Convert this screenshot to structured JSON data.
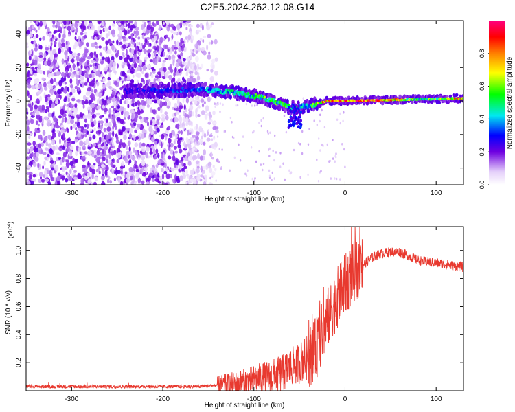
{
  "title": "C2E5.2024.262.12.08.G14",
  "chart_data": [
    {
      "type": "heatmap",
      "xlabel": "Height of straight line (km)",
      "ylabel": "Frequency (Hz)",
      "xlim": [
        -350,
        130
      ],
      "ylim": [
        -50,
        48
      ],
      "xticks": [
        -300,
        -200,
        -100,
        0,
        100
      ],
      "yticks": [
        -40,
        -20,
        0,
        20,
        40
      ],
      "colorbar": {
        "label": "Normalized spectral amplitude",
        "range": [
          0.0,
          1.0
        ],
        "ticks": [
          0.0,
          0.2,
          0.4,
          0.6,
          0.8
        ],
        "colormap": "rainbow (white-violet-blue-cyan-green-yellow-red-magenta)"
      },
      "ridge": {
        "description_points": [
          {
            "x": -240,
            "freq": 6,
            "amp": 0.25
          },
          {
            "x": -200,
            "freq": 6,
            "amp": 0.3
          },
          {
            "x": -160,
            "freq": 7,
            "amp": 0.35
          },
          {
            "x": -120,
            "freq": 5,
            "amp": 0.45
          },
          {
            "x": -90,
            "freq": 2,
            "amp": 0.55
          },
          {
            "x": -60,
            "freq": -4,
            "amp": 0.5
          },
          {
            "x": -40,
            "freq": -3,
            "amp": 0.45
          },
          {
            "x": -20,
            "freq": 0,
            "amp": 0.85
          },
          {
            "x": 0,
            "freq": 0,
            "amp": 0.95
          },
          {
            "x": 40,
            "freq": 0.5,
            "amp": 0.9
          },
          {
            "x": 80,
            "freq": 1,
            "amp": 0.5
          },
          {
            "x": 130,
            "freq": 1.5,
            "amp": 0.8
          }
        ]
      },
      "noise_region_x": [
        -350,
        -150
      ]
    },
    {
      "type": "line",
      "xlabel": "Height of straight line (km)",
      "ylabel": "SNR (10 * v/v)",
      "ylabel_multiplier": "(x10^4)",
      "xlim": [
        -350,
        130
      ],
      "ylim": [
        0,
        1.17
      ],
      "xticks": [
        -300,
        -200,
        -100,
        0,
        100
      ],
      "yticks": [
        0.2,
        0.4,
        0.6,
        0.8,
        1.0
      ],
      "line_color": "#e8392f",
      "series": [
        {
          "x": [
            -350,
            -300,
            -250,
            -200,
            -160,
            -140,
            -120,
            -110,
            -100,
            -90,
            -80,
            -70,
            -60,
            -50,
            -40,
            -30,
            -25,
            -20,
            -15,
            -10,
            -5,
            0,
            5,
            10,
            20,
            30,
            40,
            50,
            60,
            70,
            80,
            90,
            100,
            110,
            120,
            130
          ],
          "values": [
            0.03,
            0.03,
            0.03,
            0.03,
            0.03,
            0.04,
            0.05,
            0.06,
            0.08,
            0.09,
            0.1,
            0.12,
            0.16,
            0.2,
            0.24,
            0.32,
            0.42,
            0.5,
            0.58,
            0.64,
            0.7,
            0.76,
            0.8,
            0.85,
            0.9,
            0.95,
            0.98,
            0.99,
            0.99,
            0.96,
            0.93,
            0.92,
            0.91,
            0.9,
            0.89,
            0.88
          ]
        }
      ]
    }
  ]
}
